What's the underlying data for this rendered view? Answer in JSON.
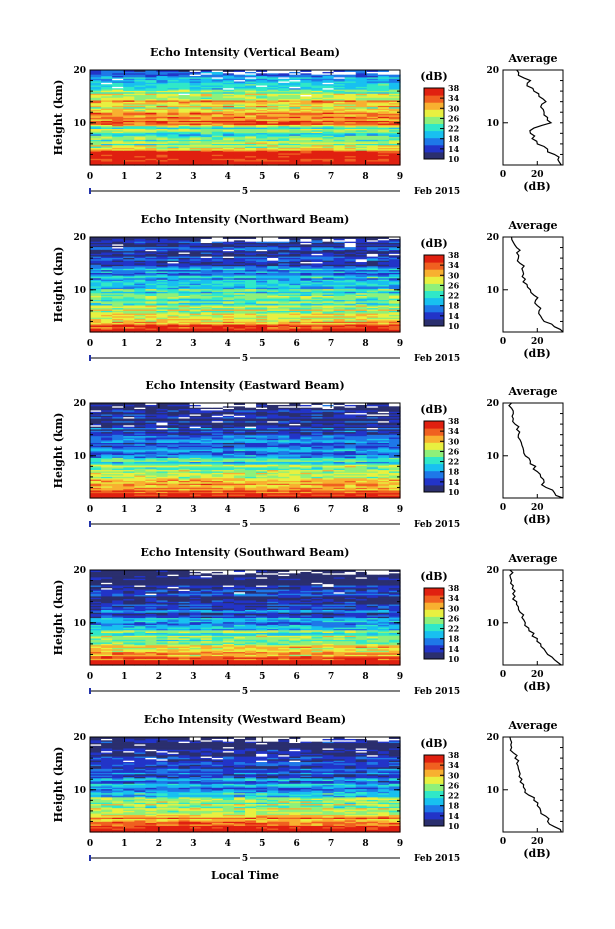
{
  "figure": {
    "xlabel": "Local Time",
    "date_label": "Feb 2015",
    "day_marker": "5",
    "colorbar_unit": "(dB)",
    "colorbar_ticks": [
      "38",
      "34",
      "30",
      "26",
      "22",
      "18",
      "14",
      "10"
    ],
    "colormap": [
      "#2b2f6e",
      "#2234c8",
      "#1e78e8",
      "#18c0f0",
      "#30e8c8",
      "#8ef07a",
      "#e8f040",
      "#f8b030",
      "#f06020",
      "#e02010"
    ]
  },
  "chart_data": [
    {
      "type": "heatmap",
      "title": "Echo Intensity (Vertical Beam)",
      "ylabel": "Height (km)",
      "x_ticks": [
        "0",
        "1",
        "2",
        "3",
        "4",
        "5",
        "6",
        "7",
        "8",
        "9"
      ],
      "y_ticks": [
        "20",
        "10"
      ],
      "xlim": [
        0,
        9
      ],
      "ylim": [
        2,
        20
      ],
      "clim": [
        10,
        38
      ],
      "average": {
        "title": "Average",
        "xlabel": "(dB)",
        "x_ticks": [
          "0",
          "20"
        ],
        "xlim": [
          0,
          35
        ],
        "heights": [
          2,
          3,
          4,
          5,
          6,
          7,
          8,
          9,
          10,
          11,
          12,
          13,
          14,
          15,
          16,
          17,
          18,
          19,
          20
        ],
        "values": [
          34,
          32,
          30,
          26,
          20,
          17,
          16,
          18,
          28,
          26,
          24,
          22,
          25,
          21,
          18,
          14,
          16,
          9,
          8
        ]
      }
    },
    {
      "type": "heatmap",
      "title": "Echo Intensity (Northward Beam)",
      "ylabel": "Height (km)",
      "x_ticks": [
        "0",
        "1",
        "2",
        "3",
        "4",
        "5",
        "6",
        "7",
        "8",
        "9"
      ],
      "y_ticks": [
        "20",
        "10"
      ],
      "xlim": [
        0,
        9
      ],
      "ylim": [
        2,
        20
      ],
      "clim": [
        10,
        38
      ],
      "average": {
        "title": "Average",
        "xlabel": "(dB)",
        "x_ticks": [
          "0",
          "20"
        ],
        "xlim": [
          0,
          35
        ],
        "heights": [
          2,
          3,
          4,
          5,
          6,
          7,
          8,
          9,
          10,
          11,
          12,
          13,
          14,
          15,
          16,
          17,
          18,
          19,
          20
        ],
        "values": [
          35,
          30,
          24,
          22,
          21,
          20,
          19,
          18,
          16,
          14,
          13,
          12,
          11,
          10,
          9,
          8,
          8,
          6,
          5
        ]
      }
    },
    {
      "type": "heatmap",
      "title": "Echo Intensity (Eastward Beam)",
      "ylabel": "Height (km)",
      "x_ticks": [
        "0",
        "1",
        "2",
        "3",
        "4",
        "5",
        "6",
        "7",
        "8",
        "9"
      ],
      "y_ticks": [
        "20",
        "10"
      ],
      "xlim": [
        0,
        9
      ],
      "ylim": [
        2,
        20
      ],
      "clim": [
        10,
        38
      ],
      "average": {
        "title": "Average",
        "xlabel": "(dB)",
        "x_ticks": [
          "0",
          "20"
        ],
        "xlim": [
          0,
          35
        ],
        "heights": [
          2,
          3,
          4,
          5,
          6,
          7,
          8,
          9,
          10,
          11,
          12,
          13,
          14,
          15,
          16,
          17,
          18,
          19,
          20
        ],
        "values": [
          35,
          30,
          25,
          24,
          22,
          20,
          19,
          16,
          13,
          12,
          11,
          10,
          9,
          8,
          7,
          6,
          6,
          5,
          5
        ]
      }
    },
    {
      "type": "heatmap",
      "title": "Echo Intensity (Southward Beam)",
      "ylabel": "Height (km)",
      "x_ticks": [
        "0",
        "1",
        "2",
        "3",
        "4",
        "5",
        "6",
        "7",
        "8",
        "9"
      ],
      "y_ticks": [
        "20",
        "10"
      ],
      "xlim": [
        0,
        9
      ],
      "ylim": [
        2,
        20
      ],
      "clim": [
        10,
        38
      ],
      "average": {
        "title": "Average",
        "xlabel": "(dB)",
        "x_ticks": [
          "0",
          "20"
        ],
        "xlim": [
          0,
          35
        ],
        "heights": [
          2,
          3,
          4,
          5,
          6,
          7,
          8,
          9,
          10,
          11,
          12,
          13,
          14,
          15,
          16,
          17,
          18,
          19,
          20
        ],
        "values": [
          34,
          30,
          26,
          24,
          22,
          20,
          18,
          15,
          13,
          11,
          10,
          9,
          8,
          7,
          7,
          6,
          5,
          4,
          4
        ]
      }
    },
    {
      "type": "heatmap",
      "title": "Echo Intensity (Westward Beam)",
      "ylabel": "Height (km)",
      "x_ticks": [
        "0",
        "1",
        "2",
        "3",
        "4",
        "5",
        "6",
        "7",
        "8",
        "9"
      ],
      "y_ticks": [
        "20",
        "10"
      ],
      "xlim": [
        0,
        9
      ],
      "ylim": [
        2,
        20
      ],
      "clim": [
        10,
        38
      ],
      "average": {
        "title": "Average",
        "xlabel": "(dB)",
        "x_ticks": [
          "0",
          "20"
        ],
        "xlim": [
          0,
          35
        ],
        "heights": [
          2,
          3,
          4,
          5,
          6,
          7,
          8,
          9,
          10,
          11,
          12,
          13,
          14,
          15,
          16,
          17,
          18,
          19,
          20
        ],
        "values": [
          34,
          30,
          26,
          25,
          22,
          20,
          18,
          15,
          13,
          12,
          11,
          10,
          9,
          8,
          7,
          6,
          5,
          5,
          4
        ]
      }
    }
  ]
}
